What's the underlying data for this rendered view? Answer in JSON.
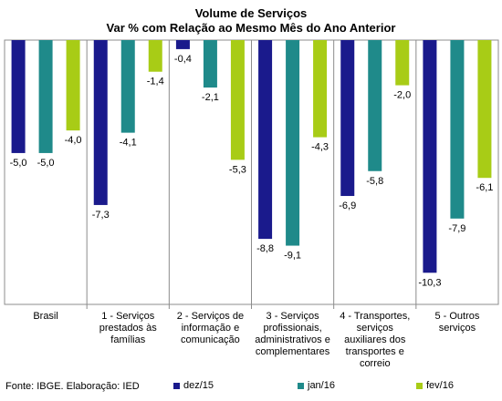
{
  "chart_data": {
    "type": "bar",
    "title": "Volume de Serviços",
    "subtitle": "Var % com Relação ao Mesmo Mês do Ano Anterior",
    "categories": [
      "Brasil",
      "1 - Serviços prestados às famílias",
      "2 - Serviços de informação e comunicação",
      "3 - Serviços profissionais, administrativos e complementares",
      "4 - Transportes, serviços auxiliares dos transportes e correio",
      "5 - Outros serviços"
    ],
    "category_lines": [
      [
        "Brasil"
      ],
      [
        "1 - Serviços",
        "prestados às",
        "famílias"
      ],
      [
        "2 - Serviços de",
        "informação e",
        "comunicação"
      ],
      [
        "3 - Serviços",
        "profissionais,",
        "administrativos e",
        "complementares"
      ],
      [
        "4 - Transportes,",
        "serviços",
        "auxiliares dos",
        "transportes e",
        "correio"
      ],
      [
        "5 - Outros",
        "serviços"
      ]
    ],
    "series": [
      {
        "name": "dez/15",
        "color": "#1a1a8c",
        "values": [
          -5.0,
          -7.3,
          -0.4,
          -8.8,
          -6.9,
          -10.3
        ]
      },
      {
        "name": "jan/16",
        "color": "#1f8a8a",
        "values": [
          -5.0,
          -4.1,
          -2.1,
          -9.1,
          -5.8,
          -7.9
        ]
      },
      {
        "name": "fev/16",
        "color": "#a8cc16",
        "values": [
          -4.0,
          -1.4,
          -5.3,
          -4.3,
          -2.0,
          -6.1
        ]
      }
    ],
    "ylim": [
      -11.7,
      0
    ],
    "grid": false,
    "legend": "bottom",
    "data_labels": true,
    "decimal_separator": ","
  },
  "footer": {
    "source": "Fonte: IBGE. Elaboração: IED"
  }
}
